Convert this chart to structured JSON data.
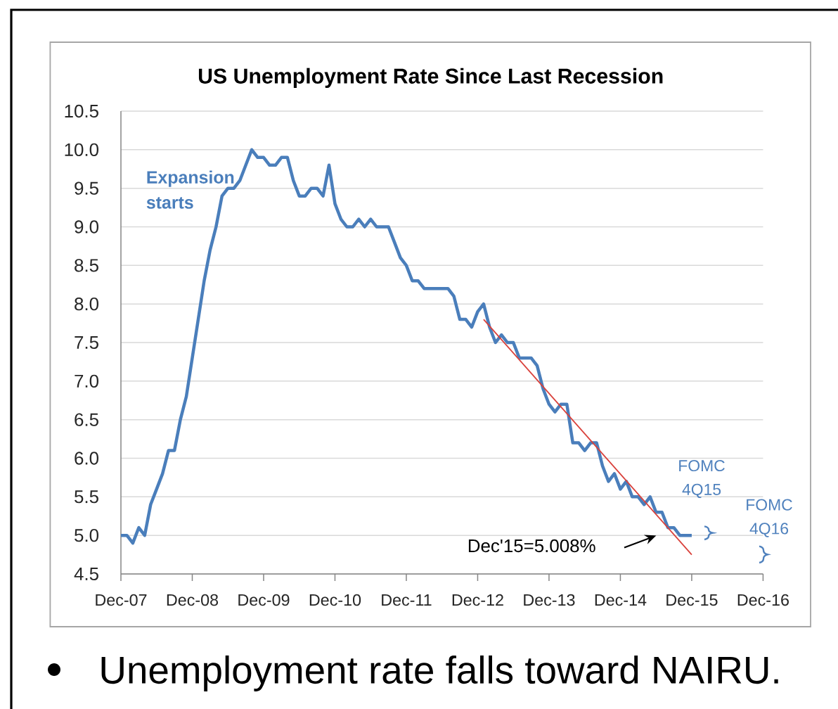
{
  "chart_data": {
    "type": "line",
    "title": "US Unemployment Rate Since Last Recession",
    "x": [
      "2007-12",
      "2008-01",
      "2008-02",
      "2008-03",
      "2008-04",
      "2008-05",
      "2008-06",
      "2008-07",
      "2008-08",
      "2008-09",
      "2008-10",
      "2008-11",
      "2008-12",
      "2009-01",
      "2009-02",
      "2009-03",
      "2009-04",
      "2009-05",
      "2009-06",
      "2009-07",
      "2009-08",
      "2009-09",
      "2009-10",
      "2009-11",
      "2009-12",
      "2010-01",
      "2010-02",
      "2010-03",
      "2010-04",
      "2010-05",
      "2010-06",
      "2010-07",
      "2010-08",
      "2010-09",
      "2010-10",
      "2010-11",
      "2010-12",
      "2011-01",
      "2011-02",
      "2011-03",
      "2011-04",
      "2011-05",
      "2011-06",
      "2011-07",
      "2011-08",
      "2011-09",
      "2011-10",
      "2011-11",
      "2011-12",
      "2012-01",
      "2012-02",
      "2012-03",
      "2012-04",
      "2012-05",
      "2012-06",
      "2012-07",
      "2012-08",
      "2012-09",
      "2012-10",
      "2012-11",
      "2012-12",
      "2013-01",
      "2013-02",
      "2013-03",
      "2013-04",
      "2013-05",
      "2013-06",
      "2013-07",
      "2013-08",
      "2013-09",
      "2013-10",
      "2013-11",
      "2013-12",
      "2014-01",
      "2014-02",
      "2014-03",
      "2014-04",
      "2014-05",
      "2014-06",
      "2014-07",
      "2014-08",
      "2014-09",
      "2014-10",
      "2014-11",
      "2014-12",
      "2015-01",
      "2015-02",
      "2015-03",
      "2015-04",
      "2015-05",
      "2015-06",
      "2015-07",
      "2015-08",
      "2015-09",
      "2015-10",
      "2015-11",
      "2015-12"
    ],
    "series": [
      {
        "color": "#4a7ebb",
        "values": [
          5.0,
          5.0,
          4.9,
          5.1,
          5.0,
          5.4,
          5.6,
          5.8,
          6.1,
          6.1,
          6.5,
          6.8,
          7.3,
          7.8,
          8.3,
          8.7,
          9.0,
          9.4,
          9.5,
          9.5,
          9.6,
          9.8,
          10.0,
          9.9,
          9.9,
          9.8,
          9.8,
          9.9,
          9.9,
          9.6,
          9.4,
          9.4,
          9.5,
          9.5,
          9.4,
          9.8,
          9.3,
          9.1,
          9.0,
          9.0,
          9.1,
          9.0,
          9.1,
          9.0,
          9.0,
          9.0,
          8.8,
          8.6,
          8.5,
          8.3,
          8.3,
          8.2,
          8.2,
          8.2,
          8.2,
          8.2,
          8.1,
          7.8,
          7.8,
          7.7,
          7.9,
          8.0,
          7.7,
          7.5,
          7.6,
          7.5,
          7.5,
          7.3,
          7.3,
          7.3,
          7.2,
          6.9,
          6.7,
          6.6,
          6.7,
          6.7,
          6.2,
          6.2,
          6.1,
          6.2,
          6.2,
          5.9,
          5.7,
          5.8,
          5.6,
          5.7,
          5.5,
          5.5,
          5.4,
          5.5,
          5.3,
          5.3,
          5.1,
          5.1,
          5.0,
          5.0,
          5.0
        ]
      },
      {
        "type": "line",
        "color": "#d9413b",
        "x": [
          "2013-01",
          "2015-12"
        ],
        "values": [
          7.8,
          4.75
        ]
      }
    ],
    "xlim": [
      "2007-12",
      "2016-12"
    ],
    "xticks": [
      {
        "value": "2007-12",
        "label": "Dec-07"
      },
      {
        "value": "2008-12",
        "label": "Dec-08"
      },
      {
        "value": "2009-12",
        "label": "Dec-09"
      },
      {
        "value": "2010-12",
        "label": "Dec-10"
      },
      {
        "value": "2011-12",
        "label": "Dec-11"
      },
      {
        "value": "2012-12",
        "label": "Dec-12"
      },
      {
        "value": "2013-12",
        "label": "Dec-13"
      },
      {
        "value": "2014-12",
        "label": "Dec-14"
      },
      {
        "value": "2015-12",
        "label": "Dec-15"
      },
      {
        "value": "2016-12",
        "label": "Dec-16"
      }
    ],
    "ylim": [
      4.5,
      10.5
    ],
    "yticks": [
      4.5,
      {
        "value": 5,
        "label": "5.0"
      },
      5.5,
      {
        "value": 6,
        "label": "6.0"
      },
      6.5,
      {
        "value": 7,
        "label": "7.0"
      },
      7.5,
      {
        "value": 8,
        "label": "8.0"
      },
      8.5,
      {
        "value": 9,
        "label": "9.0"
      },
      9.5,
      {
        "value": 10,
        "label": "10.0"
      },
      10.5
    ],
    "grid": "y",
    "annotations": [
      {
        "text": "Expansion starts",
        "x": "2009-06",
        "y": 9.5
      },
      "FOMC 4Q15",
      "FOMC 4Q16",
      "Dec'15=5.008%",
      "Unemployment rate falls toward NAIRU."
    ]
  }
}
